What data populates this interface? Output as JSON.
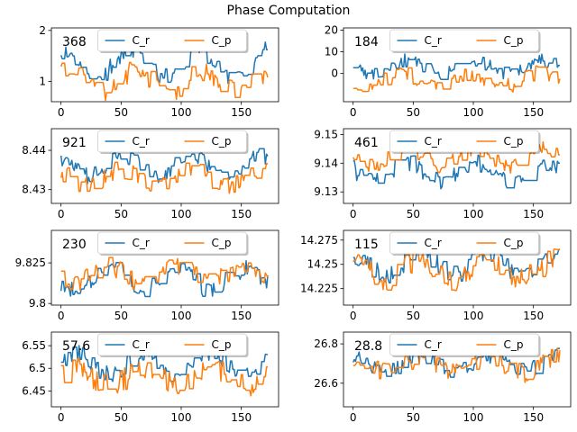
{
  "figure": {
    "title": "Phase Computation"
  },
  "chart_data": [
    {
      "type": "line",
      "label": "368",
      "ylim": [
        0.6,
        2.05
      ],
      "yticks": [
        1,
        2
      ],
      "xlim": [
        -8,
        181
      ],
      "xticks": [
        0,
        50,
        100,
        150
      ],
      "legend": [
        "C_r",
        "C_p"
      ],
      "legend_loc": "upper-center",
      "seed": 11,
      "series": [
        {
          "name": "C_r",
          "color": "#1f77b4",
          "mean": 1.35,
          "amp": 0.25,
          "noise": 0.18
        },
        {
          "name": "C_p",
          "color": "#ff7f0e",
          "mean": 1.0,
          "amp": 0.2,
          "noise": 0.2
        }
      ]
    },
    {
      "type": "line",
      "label": "184",
      "ylim": [
        -13,
        21
      ],
      "yticks": [
        0,
        10,
        20
      ],
      "xlim": [
        -8,
        181
      ],
      "xticks": [
        0,
        50,
        100,
        150
      ],
      "legend": [
        "C_r",
        "C_p"
      ],
      "legend_loc": "upper-center",
      "seed": 23,
      "series": [
        {
          "name": "C_r",
          "color": "#1f77b4",
          "mean": 3,
          "amp": 3,
          "noise": 3
        },
        {
          "name": "C_p",
          "color": "#ff7f0e",
          "mean": -3,
          "amp": 3,
          "noise": 3.5
        }
      ]
    },
    {
      "type": "line",
      "label": "921",
      "ylim": [
        8.4265,
        8.4455
      ],
      "yticks": [
        8.43,
        8.44
      ],
      "xlim": [
        -8,
        181
      ],
      "xticks": [
        0,
        50,
        100,
        150
      ],
      "legend": [
        "C_r",
        "C_p"
      ],
      "legend_loc": "upper-center",
      "seed": 37,
      "series": [
        {
          "name": "C_r",
          "color": "#1f77b4",
          "mean": 8.436,
          "amp": 0.0025,
          "noise": 0.002
        },
        {
          "name": "C_p",
          "color": "#ff7f0e",
          "mean": 8.433,
          "amp": 0.002,
          "noise": 0.0025
        }
      ]
    },
    {
      "type": "line",
      "label": "461",
      "ylim": [
        9.126,
        9.152
      ],
      "yticks": [
        9.13,
        9.14,
        9.15
      ],
      "xlim": [
        -8,
        181
      ],
      "xticks": [
        0,
        50,
        100,
        150
      ],
      "legend": [
        "C_r",
        "C_p"
      ],
      "legend_loc": "upper-center",
      "seed": 41,
      "series": [
        {
          "name": "C_r",
          "color": "#1f77b4",
          "mean": 9.137,
          "amp": 0.003,
          "noise": 0.003
        },
        {
          "name": "C_p",
          "color": "#ff7f0e",
          "mean": 9.142,
          "amp": 0.003,
          "noise": 0.0025
        }
      ]
    },
    {
      "type": "line",
      "label": "230",
      "ylim": [
        9.799,
        9.845
      ],
      "yticks": [
        9.8,
        9.825
      ],
      "xlim": [
        -8,
        181
      ],
      "xticks": [
        0,
        50,
        100,
        150
      ],
      "legend": [
        "C_r",
        "C_p"
      ],
      "legend_loc": "upper-center",
      "seed": 53,
      "series": [
        {
          "name": "C_r",
          "color": "#1f77b4",
          "mean": 9.815,
          "amp": 0.006,
          "noise": 0.006
        },
        {
          "name": "C_p",
          "color": "#ff7f0e",
          "mean": 9.818,
          "amp": 0.005,
          "noise": 0.006
        }
      ]
    },
    {
      "type": "line",
      "label": "115",
      "ylim": [
        14.208,
        14.285
      ],
      "yticks": [
        14.225,
        14.25,
        14.275
      ],
      "xlim": [
        -8,
        181
      ],
      "xticks": [
        0,
        50,
        100,
        150
      ],
      "legend": [
        "C_r",
        "C_p"
      ],
      "legend_loc": "upper-center",
      "seed": 67,
      "series": [
        {
          "name": "C_r",
          "color": "#1f77b4",
          "mean": 14.25,
          "amp": 0.01,
          "noise": 0.01
        },
        {
          "name": "C_p",
          "color": "#ff7f0e",
          "mean": 14.245,
          "amp": 0.01,
          "noise": 0.012
        }
      ]
    },
    {
      "type": "line",
      "label": "57.6",
      "ylim": [
        6.415,
        6.58
      ],
      "yticks": [
        6.45,
        6.5,
        6.55
      ],
      "xlim": [
        -8,
        181
      ],
      "xticks": [
        0,
        50,
        100,
        150
      ],
      "legend": [
        "C_r",
        "C_p"
      ],
      "legend_loc": "upper-center",
      "seed": 79,
      "series": [
        {
          "name": "C_r",
          "color": "#1f77b4",
          "mean": 6.51,
          "amp": 0.025,
          "noise": 0.02
        },
        {
          "name": "C_p",
          "color": "#ff7f0e",
          "mean": 6.48,
          "amp": 0.02,
          "noise": 0.025
        }
      ]
    },
    {
      "type": "line",
      "label": "28.8",
      "ylim": [
        26.48,
        26.86
      ],
      "yticks": [
        26.6,
        26.8
      ],
      "xlim": [
        -8,
        181
      ],
      "xticks": [
        0,
        50,
        100,
        150
      ],
      "legend": [
        "C_r",
        "C_p"
      ],
      "legend_loc": "upper-center",
      "seed": 97,
      "series": [
        {
          "name": "C_r",
          "color": "#1f77b4",
          "mean": 26.7,
          "amp": 0.04,
          "noise": 0.04
        },
        {
          "name": "C_p",
          "color": "#ff7f0e",
          "mean": 26.69,
          "amp": 0.04,
          "noise": 0.05
        }
      ]
    }
  ]
}
